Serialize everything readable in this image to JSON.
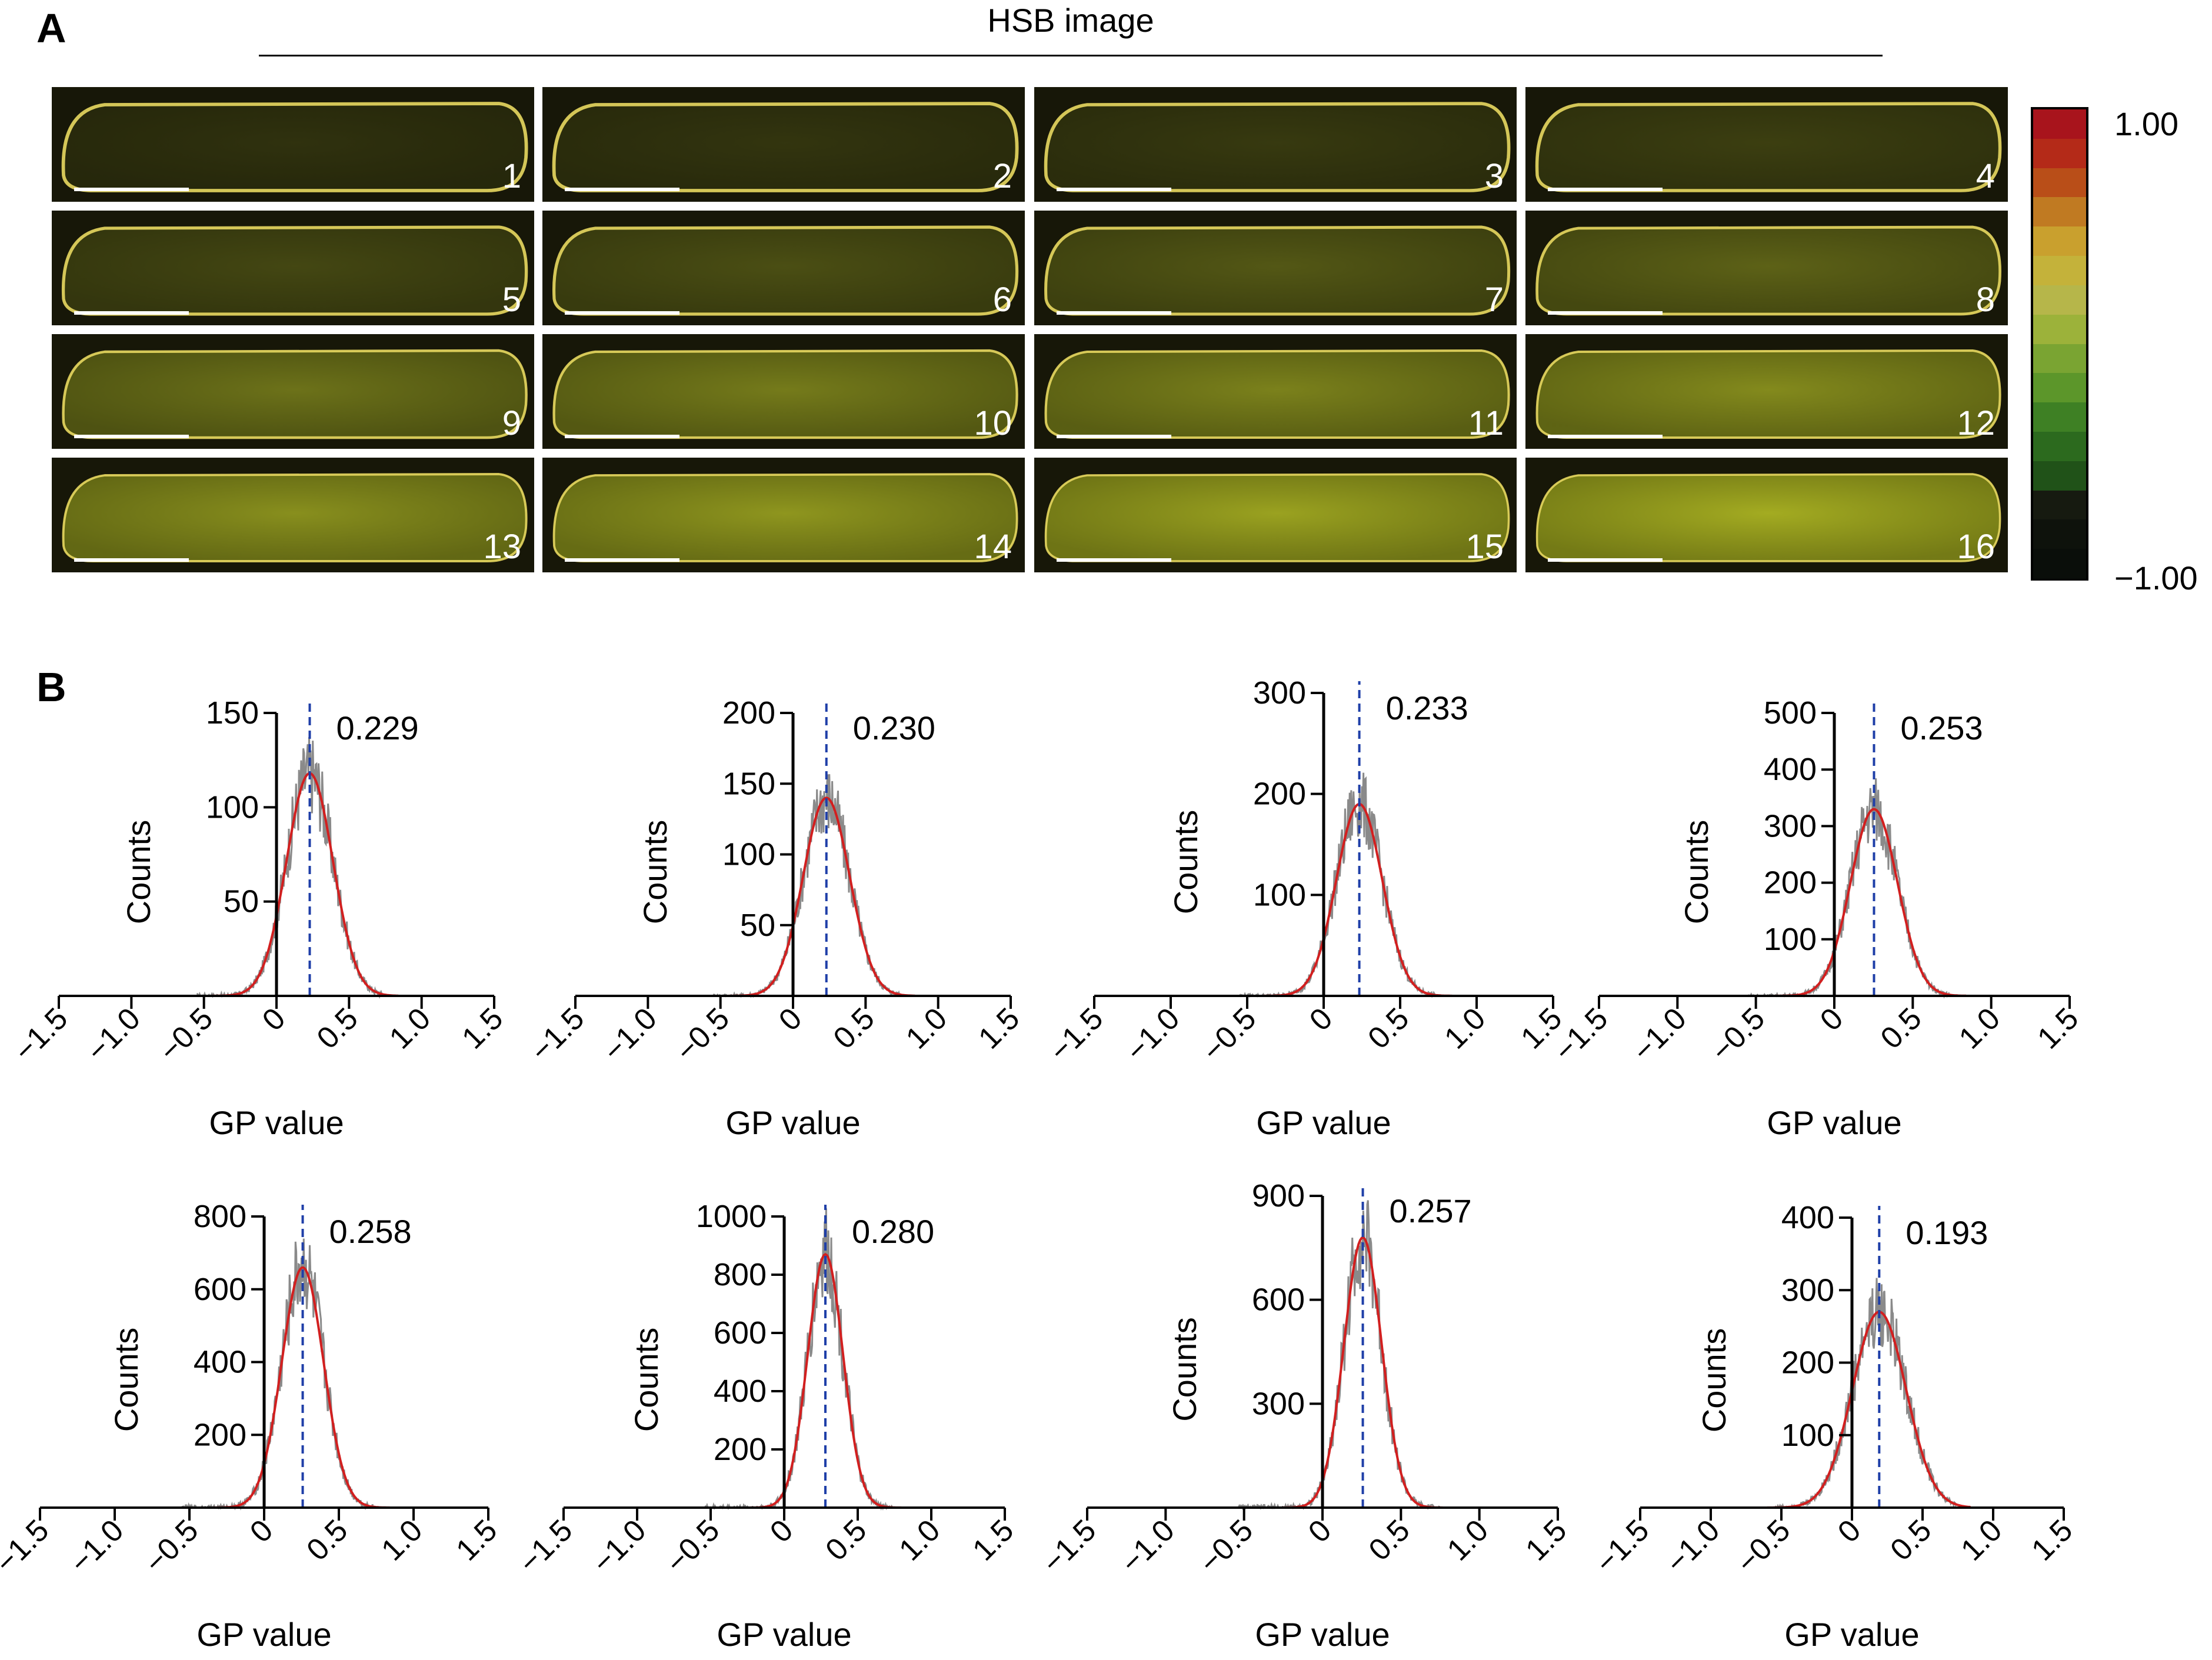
{
  "panels": {
    "a": "A",
    "b": "B"
  },
  "image_panel": {
    "title": "HSB image",
    "tiles": [
      "1",
      "2",
      "3",
      "4",
      "5",
      "6",
      "7",
      "8",
      "9",
      "10",
      "11",
      "12",
      "13",
      "14",
      "15",
      "16"
    ],
    "tile_fill": [
      0.05,
      0.08,
      0.12,
      0.16,
      0.22,
      0.28,
      0.34,
      0.42,
      0.52,
      0.58,
      0.62,
      0.66,
      0.7,
      0.74,
      0.8,
      0.85
    ],
    "colorbar": {
      "max_label": "1.00",
      "min_label": "−1.00",
      "colors": [
        "#a8141c",
        "#b42a18",
        "#b94e18",
        "#c07a22",
        "#c9a02e",
        "#c4b23a",
        "#b6b64a",
        "#9cb23a",
        "#7aa432",
        "#5c962a",
        "#3e8024",
        "#2c6a1e",
        "#205218",
        "#161a10",
        "#0e120c",
        "#0a0e0a"
      ]
    }
  },
  "chart_data": [
    {
      "type": "histogram",
      "xlabel": "GP value",
      "ylabel": "Counts",
      "xticks": [
        "−1.5",
        "−1.0",
        "−0.5",
        "0",
        "0.5",
        "1.0",
        "1.5"
      ],
      "xlim": [
        -1.5,
        1.5
      ],
      "ylim": [
        0,
        150
      ],
      "yticks": [
        "50",
        "100",
        "150"
      ],
      "ytick_values": [
        50,
        100,
        150
      ],
      "mean": 0.229,
      "peak": 118,
      "sigma": 0.16,
      "annotation": "0.229",
      "colors": {
        "histogram": "#8a8a8a",
        "fit": "#d21f1f",
        "mean_line": "#1f3fa8"
      }
    },
    {
      "type": "histogram",
      "xlabel": "GP value",
      "ylabel": "Counts",
      "xticks": [
        "−1.5",
        "−1.0",
        "−0.5",
        "0",
        "0.5",
        "1.0",
        "1.5"
      ],
      "xlim": [
        -1.5,
        1.5
      ],
      "ylim": [
        0,
        200
      ],
      "yticks": [
        "50",
        "100",
        "150",
        "200"
      ],
      "ytick_values": [
        50,
        100,
        150,
        200
      ],
      "mean": 0.23,
      "peak": 140,
      "sigma": 0.16,
      "annotation": "0.230",
      "colors": {
        "histogram": "#8a8a8a",
        "fit": "#d21f1f",
        "mean_line": "#1f3fa8"
      }
    },
    {
      "type": "histogram",
      "xlabel": "GP value",
      "ylabel": "Counts",
      "xticks": [
        "−1.5",
        "−1.0",
        "−0.5",
        "0",
        "0.5",
        "1.0",
        "1.5"
      ],
      "xlim": [
        -1.5,
        1.5
      ],
      "ylim": [
        0,
        300
      ],
      "yticks": [
        "100",
        "200",
        "300"
      ],
      "ytick_values": [
        100,
        200,
        300
      ],
      "mean": 0.233,
      "peak": 190,
      "sigma": 0.15,
      "annotation": "0.233",
      "colors": {
        "histogram": "#8a8a8a",
        "fit": "#d21f1f",
        "mean_line": "#1f3fa8"
      }
    },
    {
      "type": "histogram",
      "xlabel": "GP value",
      "ylabel": "Counts",
      "xticks": [
        "−1.5",
        "−1.0",
        "−0.5",
        "0",
        "0.5",
        "1.0",
        "1.5"
      ],
      "xlim": [
        -1.5,
        1.5
      ],
      "ylim": [
        0,
        500
      ],
      "yticks": [
        "100",
        "200",
        "300",
        "400",
        "500"
      ],
      "ytick_values": [
        100,
        200,
        300,
        400,
        500
      ],
      "mean": 0.253,
      "peak": 330,
      "sigma": 0.15,
      "annotation": "0.253",
      "colors": {
        "histogram": "#8a8a8a",
        "fit": "#d21f1f",
        "mean_line": "#1f3fa8"
      }
    },
    {
      "type": "histogram",
      "xlabel": "GP value",
      "ylabel": "Counts",
      "xticks": [
        "−1.5",
        "−1.0",
        "−0.5",
        "0",
        "0.5",
        "1.0",
        "1.5"
      ],
      "xlim": [
        -1.5,
        1.5
      ],
      "ylim": [
        0,
        800
      ],
      "yticks": [
        "200",
        "400",
        "600",
        "800"
      ],
      "ytick_values": [
        200,
        400,
        600,
        800
      ],
      "mean": 0.258,
      "peak": 660,
      "sigma": 0.14,
      "annotation": "0.258",
      "colors": {
        "histogram": "#8a8a8a",
        "fit": "#d21f1f",
        "mean_line": "#1f3fa8"
      }
    },
    {
      "type": "histogram",
      "xlabel": "GP value",
      "ylabel": "Counts",
      "xticks": [
        "−1.5",
        "−1.0",
        "−0.5",
        "0",
        "0.5",
        "1.0",
        "1.5"
      ],
      "xlim": [
        -1.5,
        1.5
      ],
      "ylim": [
        0,
        1000
      ],
      "yticks": [
        "200",
        "400",
        "600",
        "800",
        "1000"
      ],
      "ytick_values": [
        200,
        400,
        600,
        800,
        1000
      ],
      "mean": 0.28,
      "peak": 870,
      "sigma": 0.12,
      "annotation": "0.280",
      "colors": {
        "histogram": "#8a8a8a",
        "fit": "#d21f1f",
        "mean_line": "#1f3fa8"
      }
    },
    {
      "type": "histogram",
      "xlabel": "GP value",
      "ylabel": "Counts",
      "xticks": [
        "−1.5",
        "−1.0",
        "−0.5",
        "0",
        "0.5",
        "1.0",
        "1.5"
      ],
      "xlim": [
        -1.5,
        1.5
      ],
      "ylim": [
        0,
        900
      ],
      "yticks": [
        "300",
        "600",
        "900"
      ],
      "ytick_values": [
        300,
        600,
        900
      ],
      "mean": 0.257,
      "peak": 780,
      "sigma": 0.12,
      "annotation": "0.257",
      "colors": {
        "histogram": "#8a8a8a",
        "fit": "#d21f1f",
        "mean_line": "#1f3fa8"
      }
    },
    {
      "type": "histogram",
      "xlabel": "GP value",
      "ylabel": "Counts",
      "xticks": [
        "−1.5",
        "−1.0",
        "−0.5",
        "0",
        "0.5",
        "1.0",
        "1.5"
      ],
      "xlim": [
        -1.5,
        1.5
      ],
      "ylim": [
        0,
        400
      ],
      "yticks": [
        "100",
        "200",
        "300",
        "400"
      ],
      "ytick_values": [
        100,
        200,
        300,
        400
      ],
      "mean": 0.193,
      "peak": 270,
      "sigma": 0.19,
      "annotation": "0.193",
      "colors": {
        "histogram": "#8a8a8a",
        "fit": "#d21f1f",
        "mean_line": "#1f3fa8"
      }
    }
  ]
}
